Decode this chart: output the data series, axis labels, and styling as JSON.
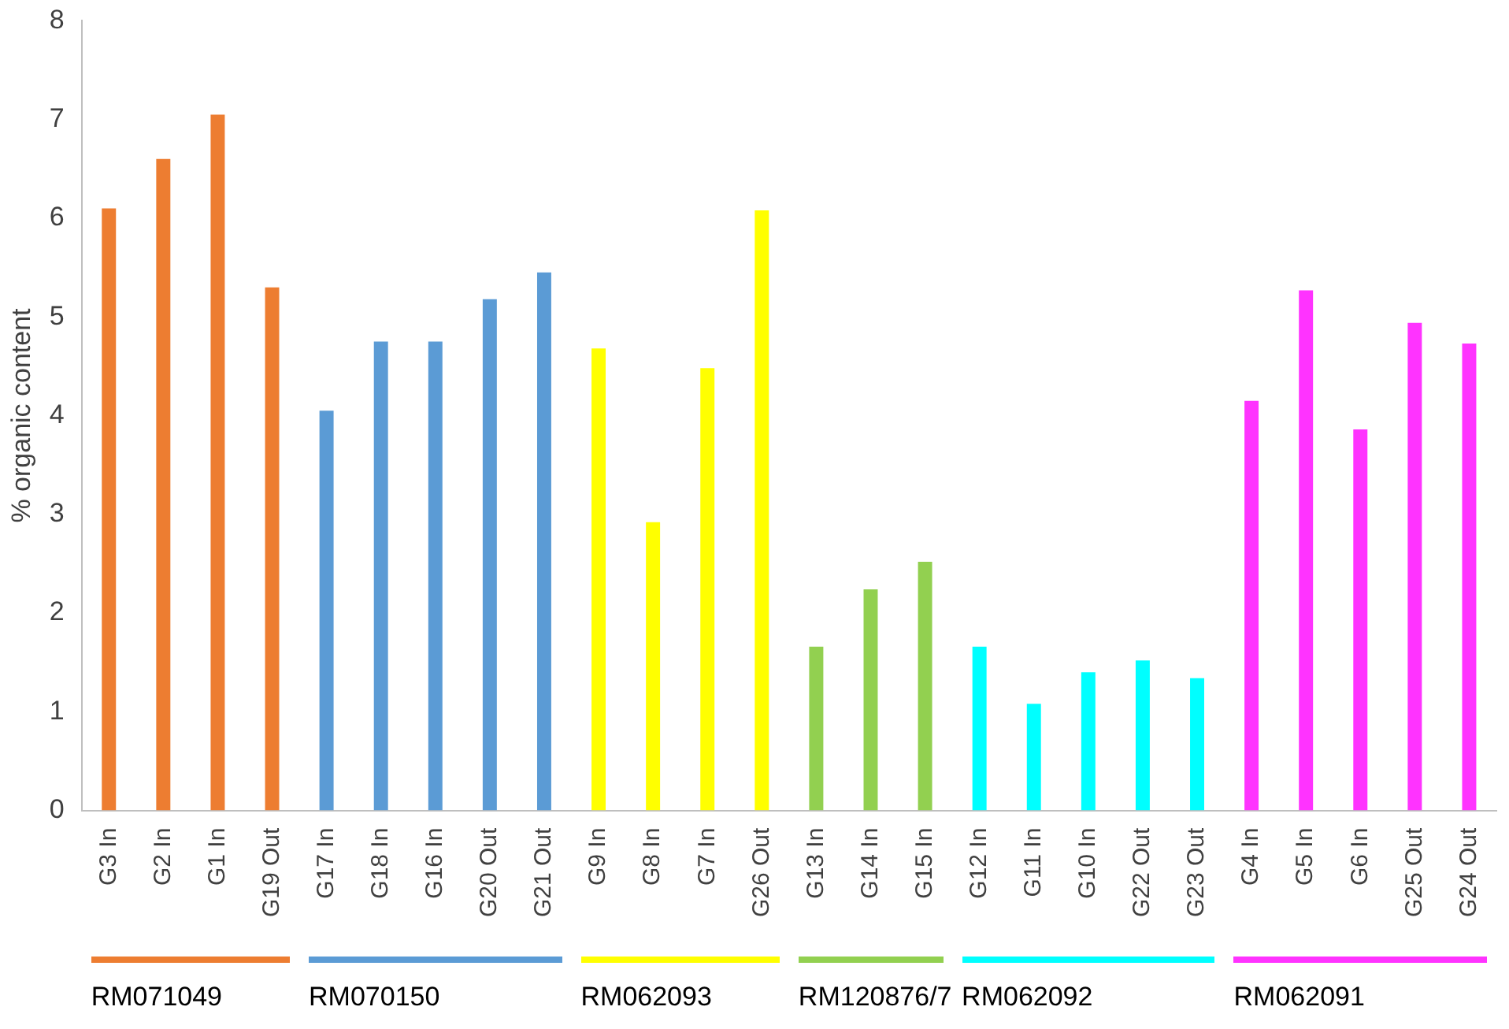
{
  "chart_data": {
    "type": "bar",
    "ylabel": "% organic content",
    "categories": [
      "G3 In",
      "G2 In",
      "G1 In",
      "G19 Out",
      "G17 In",
      "G18 In",
      "G16 In",
      "G20 Out",
      "G21 Out",
      "G9 In",
      "G8 In",
      "G7 In",
      "G26 Out",
      "G13 In",
      "G14 In",
      "G15 In",
      "G12 In",
      "G11 In",
      "G10 In",
      "G22 Out",
      "G23 Out",
      "G4 In",
      "G5 In",
      "G6 In",
      "G25 Out",
      "G24 Out"
    ],
    "values": [
      6.1,
      6.6,
      7.05,
      5.3,
      4.05,
      4.75,
      4.75,
      5.18,
      5.45,
      4.68,
      2.92,
      4.48,
      6.08,
      1.66,
      2.24,
      2.52,
      1.66,
      1.08,
      1.4,
      1.52,
      1.34,
      4.15,
      5.27,
      3.86,
      4.94,
      4.73
    ],
    "colors": [
      "#ed7d31",
      "#ed7d31",
      "#ed7d31",
      "#ed7d31",
      "#5b9bd5",
      "#5b9bd5",
      "#5b9bd5",
      "#5b9bd5",
      "#5b9bd5",
      "#ffff00",
      "#ffff00",
      "#ffff00",
      "#ffff00",
      "#92d050",
      "#92d050",
      "#92d050",
      "#00ffff",
      "#00ffff",
      "#00ffff",
      "#00ffff",
      "#00ffff",
      "#ff33ff",
      "#ff33ff",
      "#ff33ff",
      "#ff33ff",
      "#ff33ff"
    ],
    "annotations": [
      "RM071049",
      "RM070150",
      "RM062093",
      "RM120876/7",
      "RM062092",
      "RM062091"
    ],
    "ylim": [
      0,
      8
    ],
    "yticks": [
      0,
      1,
      2,
      3,
      4,
      5,
      6,
      7,
      8
    ],
    "grid": false
  }
}
